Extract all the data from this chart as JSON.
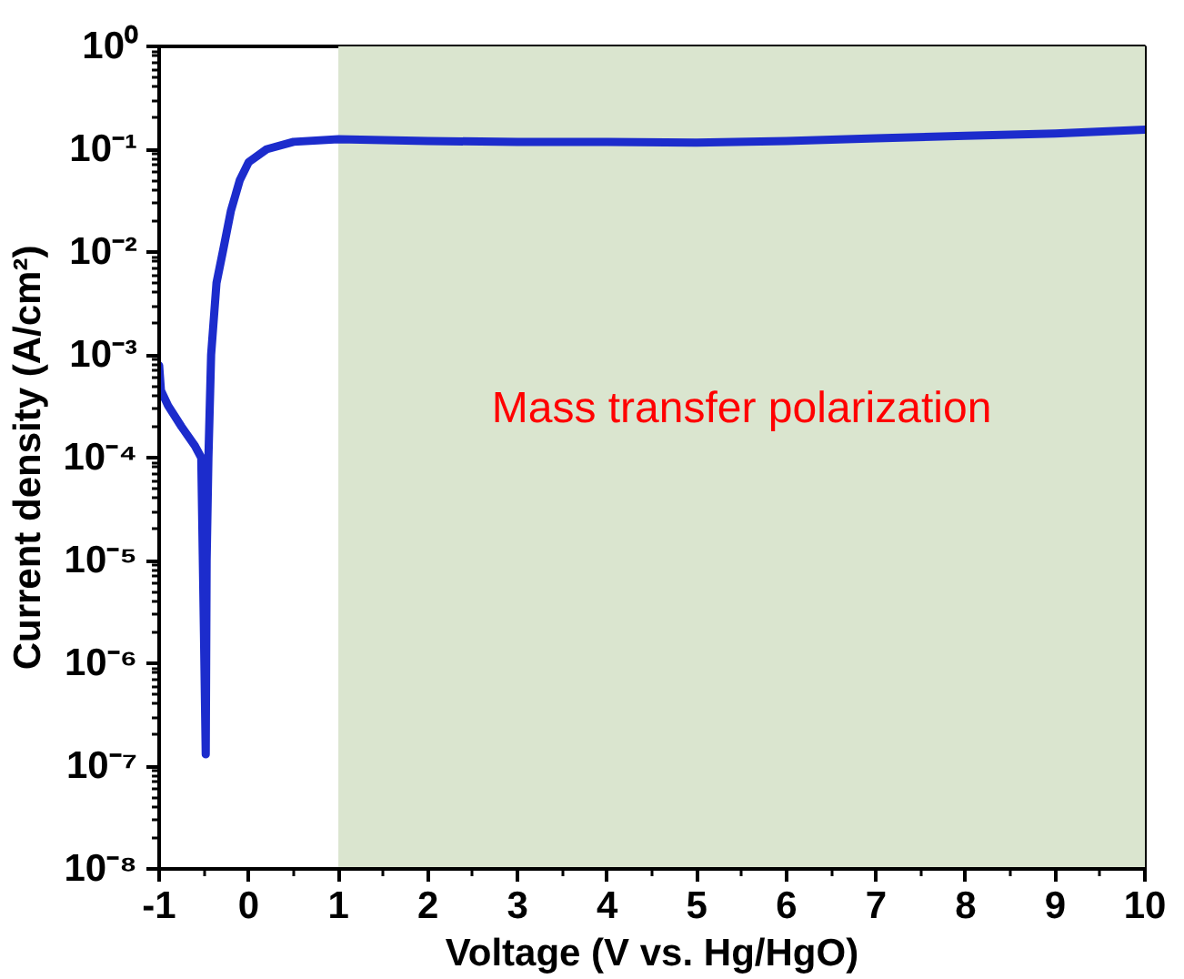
{
  "chart_data": {
    "type": "line",
    "xlabel": "Voltage (V vs. Hg/HgO)",
    "ylabel": "Current density (A/cm²)",
    "series": [
      {
        "color": "#1c2ccc",
        "x": [
          -1,
          -0.98,
          -0.9,
          -0.75,
          -0.6,
          -0.53,
          -0.5,
          -0.48,
          -0.47,
          -0.45,
          -0.42,
          -0.36,
          -0.29,
          -0.2,
          -0.1,
          0,
          0.2,
          0.5,
          1,
          2,
          3,
          4,
          5,
          6,
          7,
          8,
          9,
          10
        ],
        "values": [
          0.00079,
          0.00045,
          0.00032,
          0.0002,
          0.00013,
          0.0001,
          2e-06,
          1.3e-07,
          1e-05,
          0.0001,
          0.001,
          0.005,
          0.01,
          0.025,
          0.05,
          0.075,
          0.1,
          0.118,
          0.125,
          0.12,
          0.118,
          0.118,
          0.116,
          0.12,
          0.128,
          0.135,
          0.142,
          0.155
        ]
      }
    ],
    "log": "y",
    "xlim": [
      -1,
      10
    ],
    "ylim": [
      1e-08,
      1
    ],
    "xticks": [
      -1,
      0,
      1,
      2,
      3,
      4,
      5,
      6,
      7,
      8,
      9,
      10
    ],
    "yticks": [
      {
        "value": 1e-08,
        "label": "10⁻⁸"
      },
      {
        "value": 1e-07,
        "label": "10⁻⁷"
      },
      {
        "value": 1e-06,
        "label": "10⁻⁶"
      },
      {
        "value": 1e-05,
        "label": "10⁻⁵"
      },
      {
        "value": 0.0001,
        "label": "10⁻⁴"
      },
      {
        "value": 0.001,
        "label": "10⁻³"
      },
      {
        "value": 0.01,
        "label": "10⁻²"
      },
      {
        "value": 0.1,
        "label": "10⁻¹"
      },
      {
        "value": 1,
        "label": "10⁰"
      }
    ],
    "bands": [
      {
        "axis": "x",
        "from": 1,
        "to": 10,
        "label": "Mass transfer polarization",
        "color": "#dae5cf"
      }
    ],
    "grid": false,
    "marker": "none",
    "line_style": "solid"
  }
}
